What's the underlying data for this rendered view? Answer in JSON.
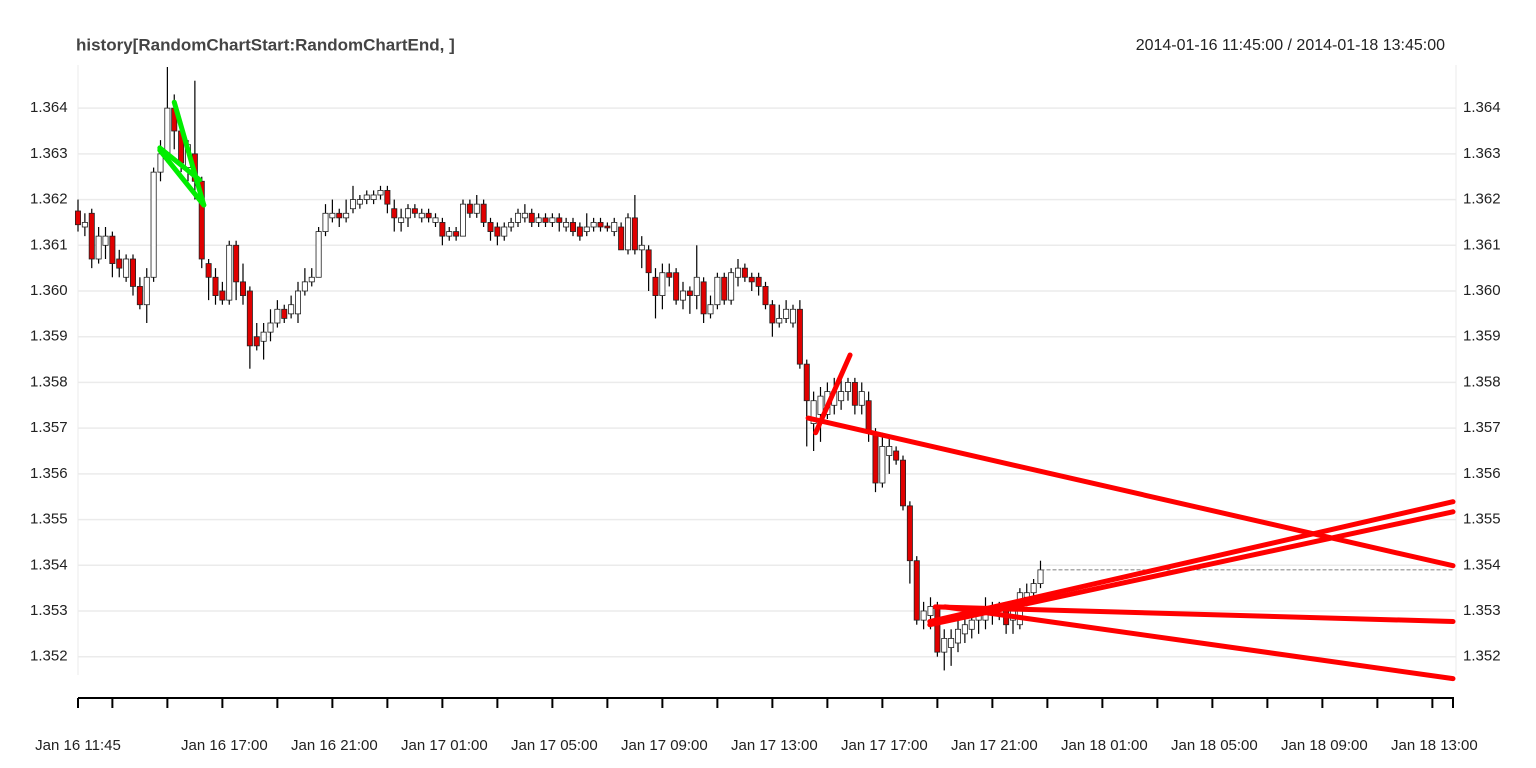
{
  "chart_data": {
    "type": "candlestick",
    "title": "history[RandomChartStart:RandomChartEnd, ]",
    "subtitle": "2014-01-16 11:45:00 / 2014-01-18 13:45:00",
    "categories": [
      "Jan 16 11:45",
      null,
      null,
      null,
      null,
      null,
      null,
      null,
      null,
      null,
      null,
      null,
      null,
      null,
      null,
      null,
      null,
      null,
      null,
      null,
      null,
      "Jan 16 17:00",
      null,
      null,
      null,
      null,
      null,
      null,
      null,
      null,
      null,
      null,
      null,
      null,
      null,
      null,
      null,
      "Jan 16 21:00",
      null,
      null,
      null,
      null,
      null,
      null,
      null,
      null,
      null,
      null,
      null,
      null,
      null,
      null,
      null,
      "Jan 17 01:00",
      null,
      null,
      null,
      null,
      null,
      null,
      null,
      null,
      null,
      null,
      null,
      null,
      null,
      null,
      null,
      "Jan 17 05:00",
      null,
      null,
      null,
      null,
      null,
      null,
      null,
      null,
      null,
      null,
      null,
      null,
      null,
      null,
      null,
      "Jan 17 09:00",
      null,
      null,
      null,
      null,
      null,
      null,
      null,
      null,
      null,
      null,
      null,
      null,
      null,
      null,
      null,
      "Jan 17 13:00",
      null,
      null,
      null,
      null,
      null,
      null,
      null,
      null,
      null,
      null,
      null,
      null,
      null,
      null,
      null,
      "Jan 17 17:00",
      null,
      null,
      null,
      null,
      null,
      null,
      null,
      null,
      null,
      null,
      null,
      null,
      null,
      null,
      null,
      "Jan 17 21:00",
      null,
      null,
      null,
      null,
      null,
      null,
      null,
      null,
      null,
      null,
      null,
      null,
      null,
      null,
      null,
      "Jan 18 01:00",
      null,
      null,
      null,
      null,
      null,
      null,
      null,
      null,
      null,
      null,
      null,
      null,
      null,
      null,
      null,
      "Jan 18 05:00",
      null,
      null,
      null,
      null,
      null,
      null,
      null,
      null,
      null,
      null,
      null,
      null,
      null,
      null,
      null,
      "Jan 18 09:00",
      null,
      null,
      null,
      null,
      null,
      null,
      null,
      null,
      null,
      null,
      null,
      null,
      null,
      null,
      null,
      "Jan 18 13:00",
      null,
      null,
      null
    ],
    "open": [
      1.36175,
      1.3614,
      1.3617,
      1.3607,
      1.361,
      1.3612,
      1.3607,
      1.3603,
      1.3607,
      1.3601,
      1.3597,
      1.3603,
      1.3626,
      1.363,
      1.364,
      1.3635,
      1.3627,
      1.363,
      1.3624,
      1.3606,
      1.3603,
      1.36,
      1.3598,
      1.361,
      1.3602,
      1.36,
      1.359,
      1.3589,
      1.3591,
      1.3593,
      1.3596,
      1.3595,
      1.3595,
      1.36,
      1.3602,
      1.3603,
      1.3613,
      1.3616,
      1.3617,
      1.3616,
      1.3618,
      1.3619,
      1.362,
      1.362,
      1.3621,
      1.3622,
      1.3618,
      1.3615,
      1.3616,
      1.3618,
      1.3616,
      1.3617,
      1.3615,
      1.3615,
      1.3612,
      1.3613,
      1.3612,
      1.3619,
      1.3617,
      1.3619,
      1.3615,
      1.3614,
      1.3612,
      1.3614,
      1.3615,
      1.3616,
      1.3617,
      1.3615,
      1.3616,
      1.3615,
      1.3616,
      1.3614,
      1.3615,
      1.3614,
      1.3613,
      1.3614,
      1.3615,
      1.36142,
      1.3613,
      1.3614,
      1.3609,
      1.3616,
      1.3609,
      1.3609,
      1.3603,
      1.3599,
      1.3604,
      1.3604,
      1.3598,
      1.36,
      1.3599,
      1.3602,
      1.3595,
      1.3597,
      1.3603,
      1.3598,
      1.3603,
      1.3605,
      1.3603,
      1.3603,
      1.3601,
      1.3597,
      1.3593,
      1.3594,
      1.3593,
      1.3596,
      1.3584,
      1.3571,
      1.3573,
      1.3573,
      1.3575,
      1.3576,
      1.3578,
      1.358,
      1.3575,
      1.3576,
      1.3569,
      1.3558,
      1.3564,
      1.3565,
      1.3563,
      1.3553,
      1.3541,
      1.3528,
      1.3529,
      1.3531,
      1.3521,
      1.3522,
      1.3523,
      1.3525,
      1.3526,
      1.3528,
      1.3528,
      1.353,
      1.353,
      1.3531,
      1.3528,
      1.3527,
      1.3533,
      1.3534,
      1.3536,
      null,
      null,
      null,
      null,
      null,
      null,
      null,
      null,
      null,
      null,
      null,
      null,
      null,
      null,
      null,
      null,
      null,
      null,
      null,
      null,
      null,
      null,
      null,
      null,
      null,
      null,
      null,
      null,
      null,
      null,
      null,
      null,
      null,
      null,
      null,
      null,
      null,
      null,
      null,
      null,
      null,
      null,
      null,
      null,
      null,
      null,
      null,
      null,
      null,
      null,
      null,
      null,
      null,
      null,
      null,
      null,
      null,
      null,
      null,
      null
    ],
    "high": [
      1.362,
      1.3617,
      1.3618,
      1.3614,
      1.3614,
      1.3613,
      1.3609,
      1.3608,
      1.3608,
      1.3603,
      1.3605,
      1.3627,
      1.3633,
      1.3649,
      1.3643,
      1.3637,
      1.3633,
      1.3646,
      1.3625,
      1.3607,
      1.3605,
      1.3602,
      1.3611,
      1.3611,
      1.3606,
      1.3601,
      1.3593,
      1.3593,
      1.3596,
      1.3598,
      1.3597,
      1.3599,
      1.3602,
      1.3605,
      1.3605,
      1.3614,
      1.3619,
      1.362,
      1.3618,
      1.362,
      1.3623,
      1.3621,
      1.3622,
      1.3622,
      1.3623,
      1.3623,
      1.362,
      1.3618,
      1.3619,
      1.3619,
      1.3618,
      1.3618,
      1.3617,
      1.3616,
      1.3614,
      1.3614,
      1.362,
      1.362,
      1.3621,
      1.362,
      1.3616,
      1.3615,
      1.3615,
      1.3616,
      1.3618,
      1.3619,
      1.3618,
      1.3617,
      1.3617,
      1.3617,
      1.3617,
      1.3616,
      1.3616,
      1.3615,
      1.3617,
      1.3616,
      1.3616,
      1.3615,
      1.3616,
      1.3615,
      1.3617,
      1.3621,
      1.3612,
      1.361,
      1.3605,
      1.3606,
      1.3606,
      1.3605,
      1.3602,
      1.3601,
      1.361,
      1.3603,
      1.3599,
      1.3604,
      1.3604,
      1.3605,
      1.3607,
      1.3606,
      1.3604,
      1.3604,
      1.3602,
      1.3598,
      1.3597,
      1.3598,
      1.3597,
      1.3598,
      1.3585,
      1.3578,
      1.3579,
      1.358,
      1.3581,
      1.3581,
      1.3581,
      1.3581,
      1.358,
      1.3578,
      1.357,
      1.3569,
      1.3568,
      1.3566,
      1.3564,
      1.3554,
      1.3542,
      1.3532,
      1.3533,
      1.3532,
      1.3526,
      1.3526,
      1.3528,
      1.3529,
      1.353,
      1.3531,
      1.3533,
      1.3532,
      1.3532,
      1.3532,
      1.3532,
      1.3535,
      1.3536,
      1.3537,
      1.3541,
      null,
      null,
      null,
      null,
      null,
      null,
      null,
      null,
      null,
      null,
      null,
      null,
      null,
      null,
      null,
      null,
      null,
      null,
      null,
      null,
      null,
      null,
      null,
      null,
      null,
      null,
      null,
      null,
      null,
      null,
      null,
      null,
      null,
      null,
      null,
      null,
      null,
      null,
      null,
      null,
      null,
      null,
      null,
      null,
      null,
      null,
      null,
      null,
      null,
      null,
      null,
      null,
      null,
      null,
      null,
      null,
      null,
      null,
      null,
      null
    ],
    "low": [
      1.3613,
      1.3612,
      1.3605,
      1.3606,
      1.3607,
      1.3603,
      1.3603,
      1.3602,
      1.3599,
      1.3596,
      1.3593,
      1.3602,
      1.3624,
      1.3628,
      1.3631,
      1.3626,
      1.3624,
      1.362,
      1.3605,
      1.3598,
      1.3597,
      1.3597,
      1.3597,
      1.3598,
      1.3597,
      1.3583,
      1.3587,
      1.3585,
      1.3589,
      1.3592,
      1.3593,
      1.3594,
      1.3593,
      1.3599,
      1.3601,
      1.3603,
      1.3612,
      1.3615,
      1.3614,
      1.3615,
      1.3617,
      1.3618,
      1.3619,
      1.3619,
      1.362,
      1.3617,
      1.3613,
      1.3613,
      1.3614,
      1.3616,
      1.3615,
      1.3615,
      1.3614,
      1.361,
      1.3611,
      1.3611,
      1.3612,
      1.3616,
      1.3616,
      1.3614,
      1.3611,
      1.361,
      1.3611,
      1.3613,
      1.3614,
      1.3615,
      1.3614,
      1.3614,
      1.3614,
      1.3614,
      1.3613,
      1.3613,
      1.3612,
      1.3611,
      1.3612,
      1.3613,
      1.3613,
      1.3613,
      1.3612,
      1.3609,
      1.3608,
      1.3608,
      1.3605,
      1.36,
      1.3594,
      1.3596,
      1.3601,
      1.3597,
      1.3596,
      1.3595,
      1.3596,
      1.3593,
      1.3594,
      1.3596,
      1.3597,
      1.3597,
      1.3601,
      1.3602,
      1.36,
      1.3599,
      1.3596,
      1.359,
      1.3592,
      1.3593,
      1.3592,
      1.3583,
      1.3566,
      1.3565,
      1.3567,
      1.3572,
      1.3573,
      1.3574,
      1.3576,
      1.3573,
      1.3573,
      1.3567,
      1.3556,
      1.3557,
      1.356,
      1.3562,
      1.3552,
      1.3536,
      1.3527,
      1.3526,
      1.3526,
      1.352,
      1.3517,
      1.3518,
      1.3521,
      1.3523,
      1.3524,
      1.3525,
      1.3526,
      1.3527,
      1.3528,
      1.3525,
      1.3525,
      1.3526,
      1.3531,
      1.3533,
      1.3535,
      null,
      null,
      null,
      null,
      null,
      null,
      null,
      null,
      null,
      null,
      null,
      null,
      null,
      null,
      null,
      null,
      null,
      null,
      null,
      null,
      null,
      null,
      null,
      null,
      null,
      null,
      null,
      null,
      null,
      null,
      null,
      null,
      null,
      null,
      null,
      null,
      null,
      null,
      null,
      null,
      null,
      null,
      null,
      null,
      null,
      null,
      null,
      null,
      null,
      null,
      null,
      null,
      null,
      null,
      null,
      null,
      null,
      null,
      null,
      null
    ],
    "close": [
      1.36145,
      1.3615,
      1.3607,
      1.3612,
      1.3612,
      1.3606,
      1.3605,
      1.3607,
      1.3601,
      1.3597,
      1.3603,
      1.3626,
      1.363,
      1.364,
      1.3635,
      1.3628,
      1.3632,
      1.3624,
      1.3607,
      1.3603,
      1.3599,
      1.3598,
      1.361,
      1.3602,
      1.3599,
      1.3588,
      1.3588,
      1.3591,
      1.3593,
      1.3596,
      1.3594,
      1.3597,
      1.36,
      1.3602,
      1.3603,
      1.3613,
      1.3617,
      1.3617,
      1.3616,
      1.3617,
      1.362,
      1.362,
      1.3621,
      1.3621,
      1.3622,
      1.3619,
      1.3616,
      1.3616,
      1.3618,
      1.3617,
      1.3617,
      1.3616,
      1.3616,
      1.3612,
      1.3613,
      1.3612,
      1.3619,
      1.3617,
      1.3619,
      1.3615,
      1.3613,
      1.3612,
      1.3614,
      1.3615,
      1.3617,
      1.3617,
      1.3615,
      1.3616,
      1.3615,
      1.3616,
      1.3615,
      1.3615,
      1.3613,
      1.3612,
      1.3614,
      1.3615,
      1.3614,
      1.36138,
      1.3615,
      1.3609,
      1.3616,
      1.3609,
      1.361,
      1.3604,
      1.3599,
      1.3604,
      1.3603,
      1.3598,
      1.36,
      1.3599,
      1.3603,
      1.3595,
      1.3597,
      1.3603,
      1.3598,
      1.3604,
      1.3605,
      1.3603,
      1.3602,
      1.3601,
      1.3597,
      1.3593,
      1.3594,
      1.3596,
      1.3596,
      1.3584,
      1.3576,
      1.3576,
      1.3577,
      1.3578,
      1.3578,
      1.3578,
      1.358,
      1.3575,
      1.3578,
      1.3569,
      1.3558,
      1.3566,
      1.3566,
      1.3563,
      1.3553,
      1.3541,
      1.3528,
      1.353,
      1.3531,
      1.3521,
      1.3524,
      1.3524,
      1.3526,
      1.3527,
      1.3528,
      1.353,
      1.3531,
      1.3531,
      1.3531,
      1.3527,
      1.353,
      1.3534,
      1.3534,
      1.3536,
      1.3539,
      null,
      null,
      null,
      null,
      null,
      null,
      null,
      null,
      null,
      null,
      null,
      null,
      null,
      null,
      null,
      null,
      null,
      null,
      null,
      null,
      null,
      null,
      null,
      null,
      null,
      null,
      null,
      null,
      null,
      null,
      null,
      null,
      null,
      null,
      null,
      null,
      null,
      null,
      null,
      null,
      null,
      null,
      null,
      null,
      null,
      null,
      null,
      null,
      null,
      null,
      null,
      null,
      null,
      null,
      null,
      null,
      null,
      null,
      null,
      null
    ],
    "up_color": "#ffffff",
    "down_color": "#e00000",
    "ylim": [
      1.3516,
      1.3649
    ],
    "yticks": [
      1.352,
      1.353,
      1.354,
      1.355,
      1.356,
      1.357,
      1.358,
      1.359,
      {
        "value": 1.36,
        "label": "1.360"
      },
      1.361,
      1.362,
      1.363,
      1.364
    ],
    "grid": true,
    "overlays": [
      {
        "color": "#00ee00",
        "x": [
          11.9,
          18.3
        ],
        "values": [
          1.36308,
          1.36188
        ]
      },
      {
        "color": "#00ee00",
        "x": [
          14.0,
          18.3
        ],
        "values": [
          1.36413,
          1.36188
        ]
      },
      {
        "color": "#00ee00",
        "x": [
          11.9,
          17.7
        ],
        "values": [
          1.36313,
          1.36243
        ]
      },
      {
        "color": "#ff0000",
        "x": [
          106.2,
          200
        ],
        "values": [
          1.35722,
          1.35399
        ]
      },
      {
        "color": "#ff0000",
        "x": [
          107.3,
          112.3
        ],
        "values": [
          1.3569,
          1.3586
        ]
      },
      {
        "color": "#ff0000",
        "x": [
          123.9,
          200
        ],
        "values": [
          1.35277,
          1.35539
        ]
      },
      {
        "color": "#ff0000",
        "x": [
          123.9,
          200
        ],
        "values": [
          1.3527,
          1.35517
        ]
      },
      {
        "color": "#ff0000",
        "x": [
          124.7,
          200
        ],
        "values": [
          1.35309,
          1.35277
        ]
      },
      {
        "color": "#ff0000",
        "x": [
          126.1,
          200
        ],
        "values": [
          1.35309,
          1.35152
        ]
      }
    ]
  }
}
